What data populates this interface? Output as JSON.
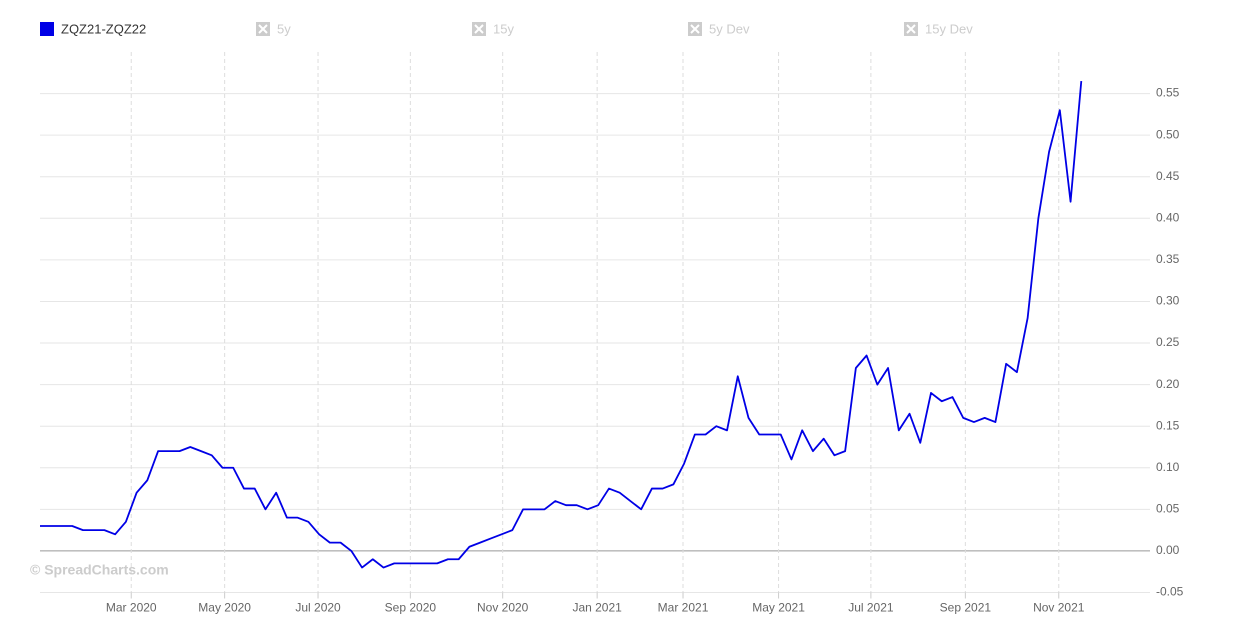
{
  "chart_data": {
    "type": "line",
    "watermark": "© SpreadCharts.com",
    "series": [
      {
        "name": "ZQZ21-ZQZ22",
        "color": "#0000e6",
        "values": [
          0.03,
          0.03,
          0.03,
          0.03,
          0.025,
          0.025,
          0.025,
          0.02,
          0.035,
          0.07,
          0.085,
          0.12,
          0.12,
          0.12,
          0.125,
          0.12,
          0.115,
          0.1,
          0.1,
          0.075,
          0.075,
          0.05,
          0.07,
          0.04,
          0.04,
          0.035,
          0.02,
          0.01,
          0.01,
          0.0,
          -0.02,
          -0.01,
          -0.02,
          -0.015,
          -0.015,
          -0.015,
          -0.015,
          -0.015,
          -0.01,
          -0.01,
          0.005,
          0.01,
          0.015,
          0.02,
          0.025,
          0.05,
          0.05,
          0.05,
          0.06,
          0.055,
          0.055,
          0.05,
          0.055,
          0.075,
          0.07,
          0.06,
          0.05,
          0.075,
          0.075,
          0.08,
          0.105,
          0.14,
          0.14,
          0.15,
          0.145,
          0.21,
          0.16,
          0.14,
          0.14,
          0.14,
          0.11,
          0.145,
          0.12,
          0.135,
          0.115,
          0.12,
          0.22,
          0.235,
          0.2,
          0.22,
          0.145,
          0.165,
          0.13,
          0.19,
          0.18,
          0.185,
          0.16,
          0.155,
          0.16,
          0.155,
          0.225,
          0.215,
          0.28,
          0.4,
          0.48,
          0.53,
          0.42,
          0.565
        ]
      }
    ],
    "hidden_series": [
      "5y",
      "15y",
      "5y Dev",
      "15y Dev"
    ],
    "xlim": [
      0,
      103.4
    ],
    "xticks": [
      {
        "value": 8.5,
        "label": "Mar 2020"
      },
      {
        "value": 17.2,
        "label": "May 2020"
      },
      {
        "value": 25.9,
        "label": "Jul 2020"
      },
      {
        "value": 34.5,
        "label": "Sep 2020"
      },
      {
        "value": 43.1,
        "label": "Nov 2020"
      },
      {
        "value": 51.9,
        "label": "Jan 2021"
      },
      {
        "value": 59.9,
        "label": "Mar 2021"
      },
      {
        "value": 68.8,
        "label": "May 2021"
      },
      {
        "value": 77.4,
        "label": "Jul 2021"
      },
      {
        "value": 86.2,
        "label": "Sep 2021"
      },
      {
        "value": 94.9,
        "label": "Nov 2021"
      }
    ],
    "ylim": [
      -0.05,
      0.6
    ],
    "yticks": [
      {
        "value": -0.05,
        "label": "-0.05"
      },
      {
        "value": 0,
        "label": "0.00"
      },
      {
        "value": 0.05,
        "label": "0.05"
      },
      {
        "value": 0.1,
        "label": "0.10"
      },
      {
        "value": 0.15,
        "label": "0.15"
      },
      {
        "value": 0.2,
        "label": "0.20"
      },
      {
        "value": 0.25,
        "label": "0.25"
      },
      {
        "value": 0.3,
        "label": "0.30"
      },
      {
        "value": 0.35,
        "label": "0.35"
      },
      {
        "value": 0.4,
        "label": "0.40"
      },
      {
        "value": 0.45,
        "label": "0.45"
      },
      {
        "value": 0.5,
        "label": "0.50"
      },
      {
        "value": 0.55,
        "label": "0.55"
      }
    ],
    "grid": true
  }
}
